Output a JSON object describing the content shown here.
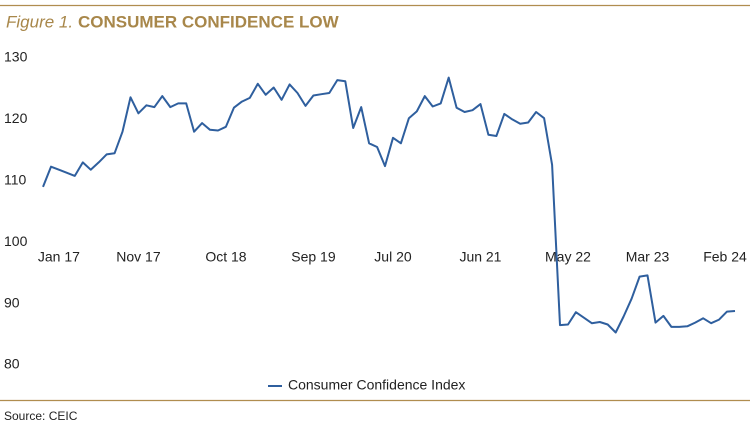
{
  "chart_data": {
    "type": "line",
    "figure_label": "Figure 1.",
    "title": "CONSUMER CONFIDENCE LOW",
    "source": "Source: CEIC",
    "categories": [
      null,
      null,
      "Jan 17",
      null,
      null,
      null,
      null,
      null,
      null,
      null,
      null,
      null,
      "Nov 17",
      null,
      null,
      null,
      null,
      null,
      null,
      null,
      null,
      null,
      null,
      "Oct 18",
      null,
      null,
      null,
      null,
      null,
      null,
      null,
      null,
      null,
      null,
      "Sep 19",
      null,
      null,
      null,
      null,
      null,
      null,
      null,
      null,
      null,
      "Jul 20",
      null,
      null,
      null,
      null,
      null,
      null,
      null,
      null,
      null,
      null,
      "Jun 21",
      null,
      null,
      null,
      null,
      null,
      null,
      null,
      null,
      null,
      null,
      "May 22",
      null,
      null,
      null,
      null,
      null,
      null,
      null,
      null,
      null,
      "Mar 23",
      null,
      null,
      null,
      null,
      null,
      null,
      null,
      null,
      null,
      null,
      "Feb 24"
    ],
    "series": [
      {
        "name": "Consumer Confidence Index",
        "color": "#2f5f9e",
        "values": [
          109,
          112.3,
          111.8,
          111.3,
          110.8,
          113,
          111.8,
          113,
          114.3,
          114.5,
          118,
          123.6,
          121,
          122.3,
          122,
          123.8,
          122,
          122.6,
          122.6,
          118,
          119.4,
          118.3,
          118.2,
          118.8,
          121.9,
          122.9,
          123.5,
          125.8,
          124,
          125.2,
          123.2,
          125.7,
          124.3,
          122.2,
          123.9,
          124.1,
          124.3,
          126.4,
          126.2,
          118.6,
          122,
          116.1,
          115.5,
          112.4,
          117,
          116.1,
          120.2,
          121.3,
          123.8,
          122.1,
          122.6,
          126.8,
          121.9,
          121.2,
          121.5,
          122.5,
          117.5,
          117.3,
          120.9,
          120,
          119.3,
          119.5,
          121.2,
          120.2,
          112.6,
          86.5,
          86.6,
          88.6,
          87.7,
          86.8,
          87,
          86.6,
          85.3,
          87.9,
          90.8,
          94.4,
          94.6,
          86.9,
          88,
          86.2,
          86.2,
          86.3,
          86.9,
          87.6,
          86.8,
          87.4,
          88.7,
          88.8
        ]
      }
    ],
    "ylim": [
      80,
      130
    ],
    "yticks": [
      80,
      90,
      100,
      110,
      120,
      130
    ],
    "grid": false,
    "legend": "bottom"
  }
}
